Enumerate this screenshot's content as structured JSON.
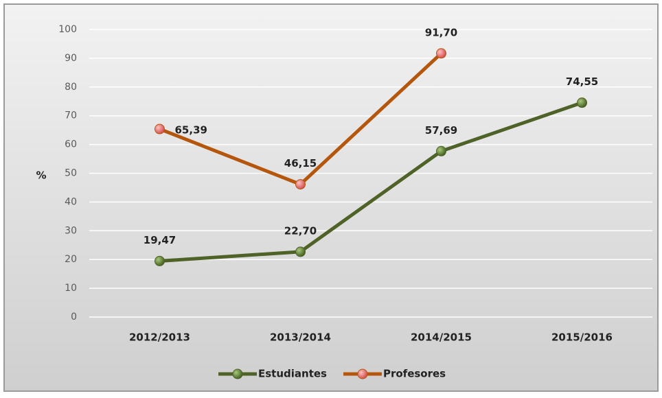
{
  "chart_data": {
    "type": "line",
    "y_label": "%",
    "categories": [
      "2012/2013",
      "2013/2014",
      "2014/2015",
      "2015/2016"
    ],
    "series": [
      {
        "name": "Estudiantes",
        "color": "#4f6228",
        "marker_color": "#5a7a2a",
        "values": [
          19.47,
          22.7,
          57.69,
          74.55
        ],
        "value_labels": [
          "19,47",
          "22,70",
          "57,69",
          "74,55"
        ]
      },
      {
        "name": "Profesores",
        "color": "#b5560d",
        "marker_color": "#e06a6a",
        "values": [
          65.39,
          46.15,
          91.7,
          null
        ],
        "value_labels": [
          "65,39",
          "46,15",
          "91,70",
          null
        ]
      }
    ],
    "ylim": [
      0,
      100
    ],
    "yticks": [
      0,
      10,
      20,
      30,
      40,
      50,
      60,
      70,
      80,
      90,
      100
    ],
    "grid": true,
    "legend": "bottom"
  }
}
